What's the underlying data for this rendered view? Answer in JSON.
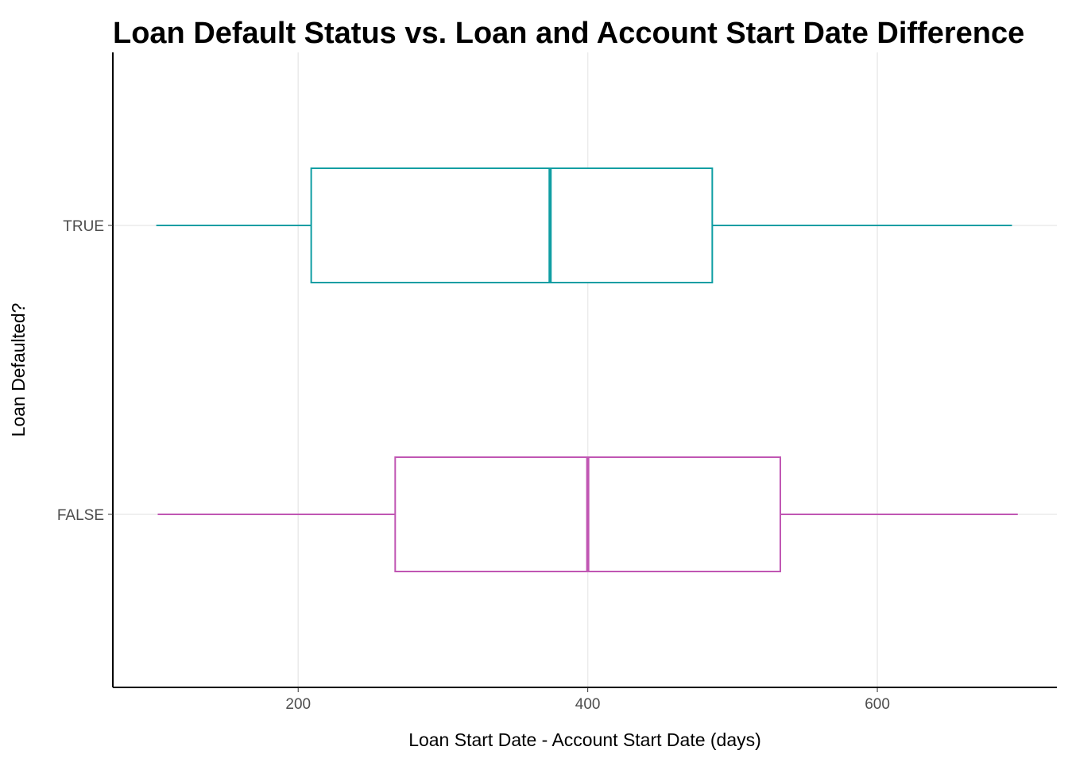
{
  "chart_data": {
    "type": "boxplot",
    "orientation": "horizontal",
    "title": "Loan Default Status vs. Loan and Account Start Date Difference",
    "xlabel": "Loan Start Date - Account Start Date (days)",
    "ylabel": "Loan Defaulted?",
    "xlim": [
      72,
      724
    ],
    "xticks": [
      200,
      400,
      600
    ],
    "categories": [
      "TRUE",
      "FALSE"
    ],
    "grid": true,
    "series": [
      {
        "category": "TRUE",
        "color": "#0f9ea3",
        "min": 102,
        "q1": 209,
        "median": 374,
        "q3": 486,
        "max": 693
      },
      {
        "category": "FALSE",
        "color": "#c056b3",
        "min": 103,
        "q1": 267,
        "median": 400,
        "q3": 533,
        "max": 697
      }
    ]
  }
}
